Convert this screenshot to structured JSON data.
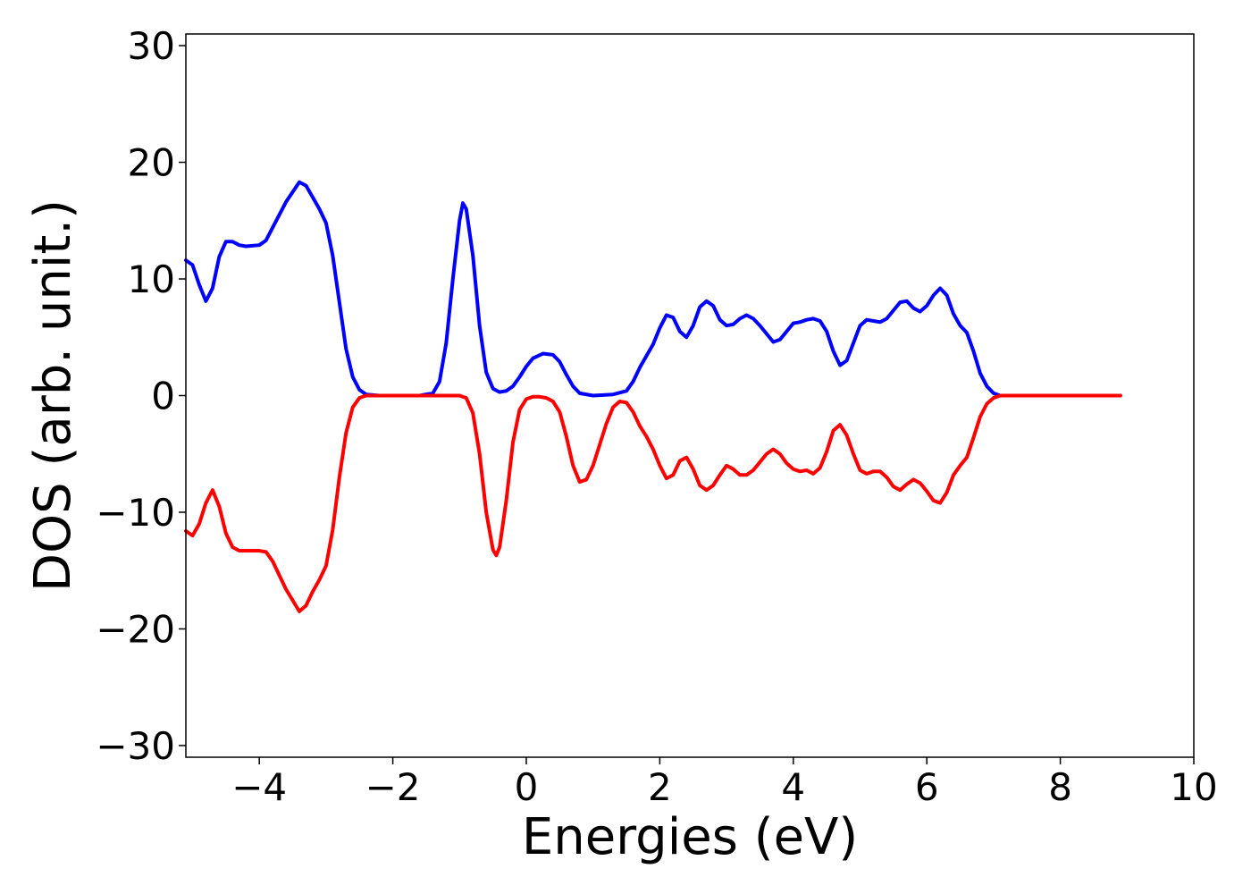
{
  "chart_data": {
    "type": "line",
    "xlabel": "Energies (eV)",
    "ylabel": "DOS (arb. unit.)",
    "xlim": [
      -5.1,
      10
    ],
    "ylim": [
      -31,
      31
    ],
    "xticks": [
      {
        "value": -4,
        "label": "−4"
      },
      {
        "value": -2,
        "label": "−2"
      },
      {
        "value": 0,
        "label": "0"
      },
      {
        "value": 2,
        "label": "2"
      },
      {
        "value": 4,
        "label": "4"
      },
      {
        "value": 6,
        "label": "6"
      },
      {
        "value": 8,
        "label": "8"
      },
      {
        "value": 10,
        "label": "10"
      }
    ],
    "yticks": [
      {
        "value": 30,
        "label": "30"
      },
      {
        "value": 20,
        "label": "20"
      },
      {
        "value": 10,
        "label": "10"
      },
      {
        "value": 0,
        "label": "0"
      },
      {
        "value": -10,
        "label": "−10"
      },
      {
        "value": -20,
        "label": "−20"
      },
      {
        "value": -30,
        "label": "−30"
      }
    ],
    "grid": false,
    "series": [
      {
        "color": "#0000ff",
        "points": [
          [
            -5.1,
            11.6
          ],
          [
            -5.0,
            11.2
          ],
          [
            -4.9,
            9.5
          ],
          [
            -4.8,
            8.1
          ],
          [
            -4.7,
            9.2
          ],
          [
            -4.6,
            11.9
          ],
          [
            -4.5,
            13.2
          ],
          [
            -4.4,
            13.2
          ],
          [
            -4.3,
            12.9
          ],
          [
            -4.2,
            12.8
          ],
          [
            -4.0,
            12.9
          ],
          [
            -3.9,
            13.3
          ],
          [
            -3.8,
            14.4
          ],
          [
            -3.6,
            16.6
          ],
          [
            -3.4,
            18.3
          ],
          [
            -3.3,
            18.0
          ],
          [
            -3.2,
            17.0
          ],
          [
            -3.1,
            16.0
          ],
          [
            -3.0,
            14.8
          ],
          [
            -2.9,
            12.0
          ],
          [
            -2.8,
            8.0
          ],
          [
            -2.7,
            4.0
          ],
          [
            -2.6,
            1.6
          ],
          [
            -2.5,
            0.5
          ],
          [
            -2.4,
            0.1
          ],
          [
            -2.2,
            0.0
          ],
          [
            -1.6,
            0.0
          ],
          [
            -1.4,
            0.2
          ],
          [
            -1.3,
            1.2
          ],
          [
            -1.2,
            4.5
          ],
          [
            -1.1,
            10.0
          ],
          [
            -1.0,
            15.0
          ],
          [
            -0.95,
            16.5
          ],
          [
            -0.9,
            16.0
          ],
          [
            -0.8,
            12.0
          ],
          [
            -0.7,
            6.0
          ],
          [
            -0.6,
            2.0
          ],
          [
            -0.5,
            0.6
          ],
          [
            -0.4,
            0.3
          ],
          [
            -0.3,
            0.4
          ],
          [
            -0.2,
            0.8
          ],
          [
            -0.1,
            1.6
          ],
          [
            0.0,
            2.5
          ],
          [
            0.1,
            3.2
          ],
          [
            0.25,
            3.6
          ],
          [
            0.4,
            3.5
          ],
          [
            0.5,
            2.9
          ],
          [
            0.6,
            1.8
          ],
          [
            0.7,
            0.8
          ],
          [
            0.8,
            0.2
          ],
          [
            1.0,
            0.0
          ],
          [
            1.3,
            0.1
          ],
          [
            1.5,
            0.4
          ],
          [
            1.6,
            1.2
          ],
          [
            1.7,
            2.4
          ],
          [
            1.8,
            3.4
          ],
          [
            1.9,
            4.4
          ],
          [
            2.0,
            5.8
          ],
          [
            2.1,
            6.9
          ],
          [
            2.2,
            6.7
          ],
          [
            2.3,
            5.5
          ],
          [
            2.4,
            5.0
          ],
          [
            2.5,
            6.0
          ],
          [
            2.6,
            7.6
          ],
          [
            2.7,
            8.1
          ],
          [
            2.8,
            7.7
          ],
          [
            2.9,
            6.5
          ],
          [
            3.0,
            6.0
          ],
          [
            3.1,
            6.1
          ],
          [
            3.2,
            6.6
          ],
          [
            3.3,
            6.9
          ],
          [
            3.4,
            6.6
          ],
          [
            3.5,
            6.0
          ],
          [
            3.6,
            5.3
          ],
          [
            3.7,
            4.6
          ],
          [
            3.8,
            4.8
          ],
          [
            3.9,
            5.5
          ],
          [
            4.0,
            6.2
          ],
          [
            4.1,
            6.3
          ],
          [
            4.2,
            6.5
          ],
          [
            4.3,
            6.6
          ],
          [
            4.4,
            6.4
          ],
          [
            4.5,
            5.5
          ],
          [
            4.6,
            3.8
          ],
          [
            4.7,
            2.6
          ],
          [
            4.8,
            3.0
          ],
          [
            4.9,
            4.5
          ],
          [
            5.0,
            6.0
          ],
          [
            5.1,
            6.5
          ],
          [
            5.2,
            6.4
          ],
          [
            5.3,
            6.3
          ],
          [
            5.4,
            6.6
          ],
          [
            5.5,
            7.3
          ],
          [
            5.6,
            8.0
          ],
          [
            5.7,
            8.1
          ],
          [
            5.8,
            7.5
          ],
          [
            5.9,
            7.2
          ],
          [
            6.0,
            7.7
          ],
          [
            6.1,
            8.6
          ],
          [
            6.2,
            9.2
          ],
          [
            6.3,
            8.6
          ],
          [
            6.4,
            7.0
          ],
          [
            6.5,
            6.0
          ],
          [
            6.6,
            5.4
          ],
          [
            6.7,
            3.8
          ],
          [
            6.8,
            1.9
          ],
          [
            6.9,
            0.8
          ],
          [
            7.0,
            0.2
          ],
          [
            7.1,
            0.0
          ],
          [
            7.5,
            0.0
          ],
          [
            8.0,
            0.0
          ],
          [
            8.5,
            0.0
          ],
          [
            8.9,
            0.0
          ]
        ]
      },
      {
        "color": "#ff0000",
        "points": [
          [
            -5.1,
            -11.6
          ],
          [
            -5.0,
            -12.0
          ],
          [
            -4.9,
            -11.0
          ],
          [
            -4.8,
            -9.2
          ],
          [
            -4.7,
            -8.1
          ],
          [
            -4.6,
            -9.5
          ],
          [
            -4.5,
            -11.8
          ],
          [
            -4.4,
            -13.0
          ],
          [
            -4.3,
            -13.3
          ],
          [
            -4.2,
            -13.3
          ],
          [
            -4.0,
            -13.3
          ],
          [
            -3.9,
            -13.4
          ],
          [
            -3.8,
            -14.2
          ],
          [
            -3.6,
            -16.6
          ],
          [
            -3.4,
            -18.5
          ],
          [
            -3.3,
            -18.0
          ],
          [
            -3.2,
            -16.8
          ],
          [
            -3.1,
            -15.8
          ],
          [
            -3.0,
            -14.6
          ],
          [
            -2.9,
            -11.5
          ],
          [
            -2.8,
            -7.0
          ],
          [
            -2.7,
            -3.2
          ],
          [
            -2.6,
            -1.0
          ],
          [
            -2.5,
            -0.2
          ],
          [
            -2.4,
            0.0
          ],
          [
            -1.0,
            0.0
          ],
          [
            -0.9,
            -0.2
          ],
          [
            -0.8,
            -1.5
          ],
          [
            -0.7,
            -5.0
          ],
          [
            -0.6,
            -10.0
          ],
          [
            -0.5,
            -13.2
          ],
          [
            -0.45,
            -13.7
          ],
          [
            -0.4,
            -13.0
          ],
          [
            -0.3,
            -9.0
          ],
          [
            -0.2,
            -4.0
          ],
          [
            -0.1,
            -1.2
          ],
          [
            0.0,
            -0.3
          ],
          [
            0.1,
            -0.1
          ],
          [
            0.2,
            -0.1
          ],
          [
            0.3,
            -0.2
          ],
          [
            0.4,
            -0.5
          ],
          [
            0.5,
            -1.4
          ],
          [
            0.6,
            -3.5
          ],
          [
            0.7,
            -6.0
          ],
          [
            0.8,
            -7.4
          ],
          [
            0.9,
            -7.2
          ],
          [
            1.0,
            -6.0
          ],
          [
            1.1,
            -4.2
          ],
          [
            1.2,
            -2.4
          ],
          [
            1.3,
            -1.0
          ],
          [
            1.4,
            -0.5
          ],
          [
            1.5,
            -0.6
          ],
          [
            1.6,
            -1.4
          ],
          [
            1.7,
            -2.6
          ],
          [
            1.8,
            -3.5
          ],
          [
            1.9,
            -4.6
          ],
          [
            2.0,
            -6.0
          ],
          [
            2.1,
            -7.1
          ],
          [
            2.2,
            -6.8
          ],
          [
            2.3,
            -5.6
          ],
          [
            2.4,
            -5.3
          ],
          [
            2.5,
            -6.3
          ],
          [
            2.6,
            -7.7
          ],
          [
            2.7,
            -8.1
          ],
          [
            2.8,
            -7.7
          ],
          [
            2.9,
            -6.8
          ],
          [
            3.0,
            -6.0
          ],
          [
            3.1,
            -6.3
          ],
          [
            3.2,
            -6.8
          ],
          [
            3.3,
            -6.8
          ],
          [
            3.4,
            -6.4
          ],
          [
            3.5,
            -5.7
          ],
          [
            3.6,
            -5.0
          ],
          [
            3.7,
            -4.6
          ],
          [
            3.8,
            -5.0
          ],
          [
            3.9,
            -5.8
          ],
          [
            4.0,
            -6.3
          ],
          [
            4.1,
            -6.5
          ],
          [
            4.2,
            -6.4
          ],
          [
            4.3,
            -6.7
          ],
          [
            4.4,
            -6.2
          ],
          [
            4.5,
            -4.8
          ],
          [
            4.6,
            -3.0
          ],
          [
            4.7,
            -2.5
          ],
          [
            4.8,
            -3.4
          ],
          [
            4.9,
            -5.0
          ],
          [
            5.0,
            -6.4
          ],
          [
            5.1,
            -6.7
          ],
          [
            5.2,
            -6.5
          ],
          [
            5.3,
            -6.5
          ],
          [
            5.4,
            -7.0
          ],
          [
            5.5,
            -7.8
          ],
          [
            5.6,
            -8.1
          ],
          [
            5.7,
            -7.6
          ],
          [
            5.8,
            -7.2
          ],
          [
            5.9,
            -7.5
          ],
          [
            6.0,
            -8.2
          ],
          [
            6.1,
            -9.0
          ],
          [
            6.2,
            -9.2
          ],
          [
            6.3,
            -8.3
          ],
          [
            6.4,
            -6.8
          ],
          [
            6.5,
            -6.0
          ],
          [
            6.6,
            -5.3
          ],
          [
            6.7,
            -3.6
          ],
          [
            6.8,
            -1.8
          ],
          [
            6.9,
            -0.7
          ],
          [
            7.0,
            -0.2
          ],
          [
            7.1,
            0.0
          ],
          [
            7.5,
            0.0
          ],
          [
            8.0,
            0.0
          ],
          [
            8.5,
            0.0
          ],
          [
            8.9,
            0.0
          ]
        ]
      }
    ]
  }
}
